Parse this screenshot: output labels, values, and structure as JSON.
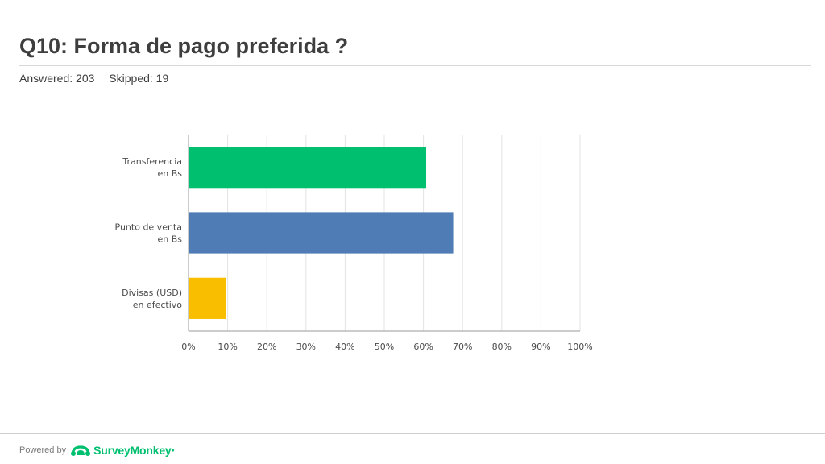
{
  "header": {
    "title": "Q10: Forma de pago preferida ?",
    "answered": "Answered: 203",
    "skipped": "Skipped: 19"
  },
  "footer": {
    "powered_by": "Powered by",
    "brand": "SurveyMonkey",
    "logo_icon": "surveymonkey-logo-icon",
    "brand_color": "#00bf6f"
  },
  "chart_data": {
    "type": "bar",
    "orientation": "horizontal",
    "categories": [
      [
        "Transferencia",
        "en Bs"
      ],
      [
        "Punto de venta",
        "en Bs"
      ],
      [
        "Divisas (USD)",
        "en efectivo"
      ]
    ],
    "values": [
      60.6,
      67.5,
      9.4
    ],
    "colors": [
      "#00bf6f",
      "#507cb6",
      "#f9be00"
    ],
    "xlim": [
      0,
      100
    ],
    "xticks": [
      "0%",
      "10%",
      "20%",
      "30%",
      "40%",
      "50%",
      "60%",
      "70%",
      "80%",
      "90%",
      "100%"
    ],
    "grid": true,
    "gridColor": "#e3e3e3",
    "axisColor": "#9a9a9a"
  }
}
